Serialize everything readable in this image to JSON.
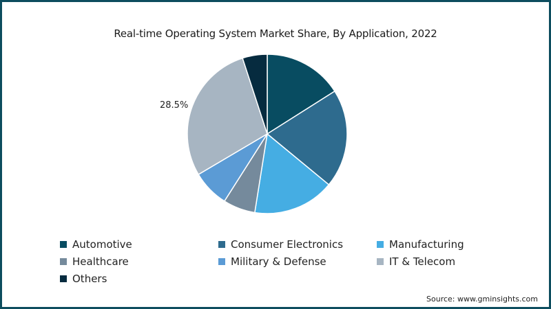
{
  "chart_data": {
    "type": "pie",
    "title": "Real-time Operating System Market Share, By Application, 2022",
    "categories": [
      "Automotive",
      "Consumer Electronics",
      "Manufacturing",
      "Healthcare",
      "Military & Defense",
      "IT & Telecom",
      "Others"
    ],
    "values": [
      16.0,
      20.0,
      16.5,
      6.5,
      7.5,
      28.5,
      5.0
    ],
    "colors": [
      "#084c61",
      "#2e6b8e",
      "#45ade3",
      "#758a9c",
      "#5b9bd5",
      "#a7b5c2",
      "#062b3f"
    ],
    "labels_shown": {
      "IT & Telecom": "28.5%"
    },
    "legend_position": "bottom",
    "start_angle": "top, clockwise"
  },
  "slice_label_text": "28.5%",
  "legend": [
    {
      "label": "Automotive",
      "color": "#084c61"
    },
    {
      "label": "Consumer Electronics",
      "color": "#2e6b8e"
    },
    {
      "label": "Manufacturing",
      "color": "#45ade3"
    },
    {
      "label": "Healthcare",
      "color": "#758a9c"
    },
    {
      "label": "Military & Defense",
      "color": "#5b9bd5"
    },
    {
      "label": "IT & Telecom",
      "color": "#a7b5c2"
    },
    {
      "label": "Others",
      "color": "#062b3f"
    }
  ],
  "source": "Source: www.gminsights.com"
}
